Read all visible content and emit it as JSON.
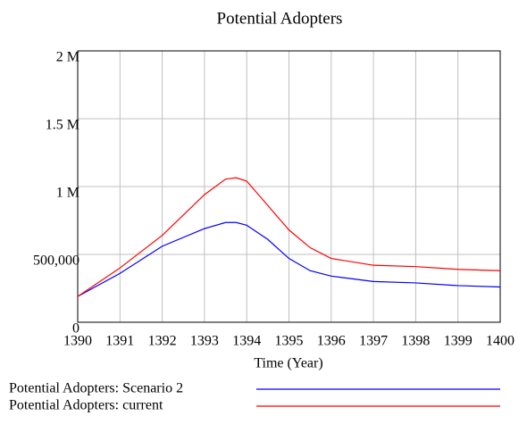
{
  "chart_data": {
    "type": "line",
    "title": "Potential Adopters",
    "xlabel": "Time (Year)",
    "x": [
      1390,
      1391,
      1392,
      1393,
      1393.5,
      1393.75,
      1394,
      1394.5,
      1395,
      1395.5,
      1396,
      1397,
      1398,
      1399,
      1400
    ],
    "series": [
      {
        "name": "Potential Adopters: Scenario 2",
        "color": "#0000ff",
        "values": [
          190000,
          360000,
          560000,
          690000,
          735000,
          735000,
          715000,
          610000,
          470000,
          380000,
          340000,
          300000,
          290000,
          270000,
          260000
        ]
      },
      {
        "name": "Potential Adopters: current",
        "color": "#ff0000",
        "values": [
          190000,
          400000,
          640000,
          940000,
          1055000,
          1065000,
          1040000,
          860000,
          680000,
          550000,
          470000,
          420000,
          410000,
          390000,
          380000
        ]
      }
    ],
    "xlim": [
      1390,
      1400
    ],
    "xticks": [
      1390,
      1391,
      1392,
      1393,
      1394,
      1395,
      1396,
      1397,
      1398,
      1399,
      1400
    ],
    "ylim": [
      0,
      2000000
    ],
    "yticks": [
      0,
      {
        "value": 500000,
        "label": "500,000"
      },
      {
        "value": 1000000,
        "label": "1 M"
      },
      {
        "value": 1500000,
        "label": "1.5 M"
      },
      {
        "value": 2000000,
        "label": "2 M"
      }
    ],
    "grid": true
  }
}
